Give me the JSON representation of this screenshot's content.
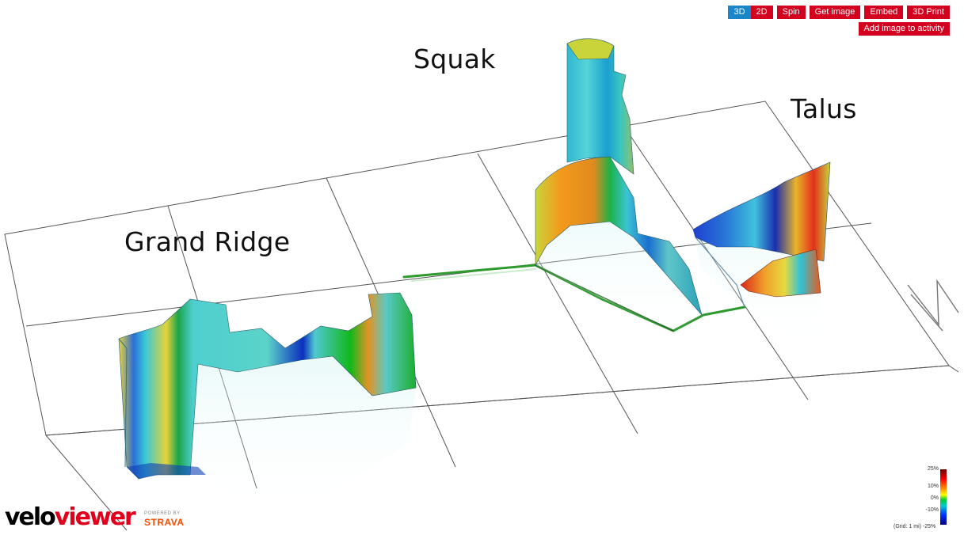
{
  "toolbar": {
    "view_3d": "3D",
    "view_2d": "2D",
    "spin": "Spin",
    "get_image": "Get image",
    "embed": "Embed",
    "print_3d": "3D Print",
    "add_image": "Add image to activity"
  },
  "regions": {
    "grand_ridge": "Grand Ridge",
    "squak": "Squak",
    "talus": "Talus"
  },
  "branding": {
    "velo": "velo",
    "viewer": "viewer",
    "powered_by": "POWERED BY",
    "strava": "STRAVA"
  },
  "legend": {
    "max": "25%",
    "p10": "10%",
    "zero": "0%",
    "n10": "-10%",
    "grid_note": "(Grid: 1 mi) -25%"
  },
  "colors": {
    "button_red": "#d4001f",
    "button_active": "#1a86c8",
    "route_green": "#2e9a2e"
  }
}
